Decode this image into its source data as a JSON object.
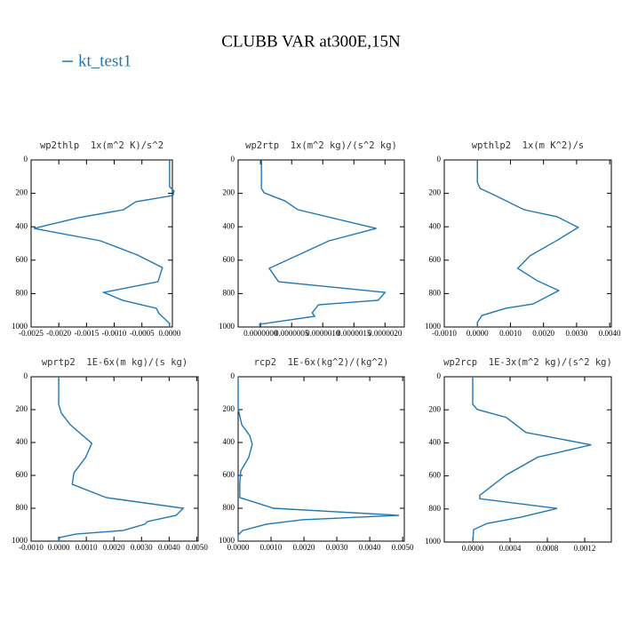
{
  "title": "CLUBB VAR at300E,15N",
  "legend": {
    "label": "kt_test1",
    "color": "#1f77b4"
  },
  "chart_data": [
    {
      "type": "line",
      "title": "wp2thlp  1x(m^2 K)/s^2",
      "levels": [
        0,
        160,
        186,
        213,
        250,
        298,
        346,
        410,
        484,
        569,
        644,
        729,
        793,
        840,
        888,
        920,
        979,
        1000
      ],
      "values": [
        0,
        0,
        8e-05,
        6e-05,
        -0.00061,
        -0.00083,
        -0.00165,
        -0.00245,
        -0.00125,
        -0.00058,
        -0.00013,
        -0.00021,
        -0.00119,
        -0.00085,
        -0.00024,
        -0.00019,
        0,
        0
      ],
      "xlim": [
        -0.0025,
        5e-05
      ],
      "xticks": [
        {
          "value": -0.0025,
          "label": "-0.0025"
        },
        {
          "value": -0.002,
          "label": "-0.0020"
        },
        {
          "value": -0.0015,
          "label": "-0.0015"
        },
        {
          "value": -0.001,
          "label": "-0.0010"
        },
        {
          "value": -0.0005,
          "label": "-0.0005"
        },
        {
          "value": 0,
          "label": "0.0000"
        }
      ],
      "ylim": [
        0,
        1000
      ],
      "yticks": [
        0,
        200,
        400,
        600,
        800,
        1000
      ],
      "y_inverted": true
    },
    {
      "type": "line",
      "title": "wp2rtp  1x(m^2 kg)/(s^2 kg)",
      "levels": [
        0,
        170,
        197,
        245,
        298,
        410,
        484,
        649,
        729,
        793,
        840,
        867,
        915,
        936,
        984,
        1000
      ],
      "values": [
        1.4e-08,
        1.4e-08,
        5.7e-08,
        3.9e-07,
        6e-07,
        1.86e-06,
        1.1e-06,
        1.4e-07,
        2.9e-07,
        2e-06,
        1.89e-06,
        9.3e-07,
        8.3e-07,
        8.7e-07,
        -1.4e-08,
        -1.4e-08
      ],
      "xlim": [
        -3.6e-07,
        2.31e-06
      ],
      "xticks": [
        {
          "value": 0,
          "label": "0.0000000"
        },
        {
          "value": 5e-07,
          "label": "0.0000005"
        },
        {
          "value": 1e-06,
          "label": "0.0000010"
        },
        {
          "value": 1.5e-06,
          "label": "0.0000015"
        },
        {
          "value": 2e-06,
          "label": "0.0000020"
        }
      ],
      "ylim": [
        0,
        1000
      ],
      "yticks": [
        0,
        200,
        400,
        600,
        800,
        1000
      ],
      "y_inverted": true
    },
    {
      "type": "line",
      "title": "wpthlp2  1x(m K^2)/s",
      "levels": [
        0,
        133,
        170,
        213,
        298,
        340,
        404,
        479,
        574,
        649,
        723,
        782,
        862,
        888,
        931,
        973,
        1000
      ],
      "values": [
        0,
        0,
        8.1e-05,
        0.00054,
        0.00141,
        0.00241,
        0.00305,
        0.00243,
        0.00159,
        0.00122,
        0.00181,
        0.00246,
        0.00168,
        0.00086,
        0.00014,
        0,
        0
      ],
      "xlim": [
        -0.001,
        0.00405
      ],
      "xticks": [
        {
          "value": -0.001,
          "label": "-0.0010"
        },
        {
          "value": 0,
          "label": "0.0000"
        },
        {
          "value": 0.001,
          "label": "0.0010"
        },
        {
          "value": 0.002,
          "label": "0.0020"
        },
        {
          "value": 0.003,
          "label": "0.0030"
        },
        {
          "value": 0.004,
          "label": "0.0040"
        }
      ],
      "ylim": [
        0,
        1000
      ],
      "yticks": [
        0,
        200,
        400,
        600,
        800,
        1000
      ],
      "y_inverted": true
    },
    {
      "type": "line",
      "title": "wprtp2  1E-6x(m kg)/(s kg)",
      "levels": [
        0,
        168,
        222,
        292,
        405,
        492,
        584,
        654,
        735,
        800,
        843,
        881,
        897,
        935,
        957,
        978,
        1000
      ],
      "values": [
        0,
        0,
        9.7e-05,
        0.00042,
        0.0012,
        0.00097,
        0.00055,
        0.00049,
        0.00172,
        0.00451,
        0.00425,
        0.00321,
        0.00312,
        0.00234,
        0.00062,
        3e-05,
        0
      ],
      "xlim": [
        -0.001,
        0.00505
      ],
      "xticks": [
        {
          "value": -0.001,
          "label": "-0.0010"
        },
        {
          "value": 0,
          "label": "0.0000"
        },
        {
          "value": 0.001,
          "label": "0.0010"
        },
        {
          "value": 0.002,
          "label": "0.0020"
        },
        {
          "value": 0.003,
          "label": "0.0030"
        },
        {
          "value": 0.004,
          "label": "0.0040"
        },
        {
          "value": 0.005,
          "label": "0.0050"
        }
      ],
      "ylim": [
        0,
        1000
      ],
      "yticks": [
        0,
        200,
        400,
        600,
        800,
        1000
      ],
      "y_inverted": true
    },
    {
      "type": "line",
      "title": "rcp2  1E-6x(kg^2)/(kg^2)",
      "levels": [
        0,
        195,
        292,
        357,
        411,
        492,
        573,
        654,
        735,
        800,
        843,
        870,
        897,
        935,
        962,
        1000
      ],
      "values": [
        0,
        0,
        0.00011,
        0.00035,
        0.00043,
        0.00032,
        8e-05,
        5e-05,
        5e-05,
        0.00108,
        0.00489,
        0.00195,
        0.00086,
        0.00014,
        0,
        0
      ],
      "xlim": [
        0,
        0.00505
      ],
      "xticks": [
        {
          "value": 0,
          "label": "0.0000"
        },
        {
          "value": 0.001,
          "label": "0.0010"
        },
        {
          "value": 0.002,
          "label": "0.0020"
        },
        {
          "value": 0.003,
          "label": "0.0030"
        },
        {
          "value": 0.004,
          "label": "0.0040"
        },
        {
          "value": 0.005,
          "label": "0.0050"
        }
      ],
      "ylim": [
        0,
        1000
      ],
      "yticks": [
        0,
        200,
        400,
        600,
        800,
        1000
      ],
      "y_inverted": true
    },
    {
      "type": "line",
      "title": "wp2rcp  1E-3x(m^2 kg)/(s^2 kg)",
      "levels": [
        0,
        166,
        198,
        246,
        337,
        412,
        487,
        594,
        717,
        738,
        797,
        850,
        888,
        925,
        1000
      ],
      "values": [
        0,
        0,
        4.8e-05,
        0.00036,
        0.00057,
        0.00127,
        0.000695,
        0.00036,
        7.6e-05,
        7.6e-05,
        0.000905,
        0.000514,
        0.000152,
        1e-05,
        0
      ],
      "xlim": [
        -0.000305,
        0.001486
      ],
      "xticks": [
        {
          "value": 0,
          "label": "0.0000"
        },
        {
          "value": 0.0004,
          "label": "0.0004"
        },
        {
          "value": 0.0008,
          "label": "0.0008"
        },
        {
          "value": 0.0012,
          "label": "0.0012"
        }
      ],
      "ylim": [
        0,
        1000
      ],
      "yticks": [
        0,
        200,
        400,
        600,
        800,
        1000
      ],
      "y_inverted": true
    }
  ]
}
